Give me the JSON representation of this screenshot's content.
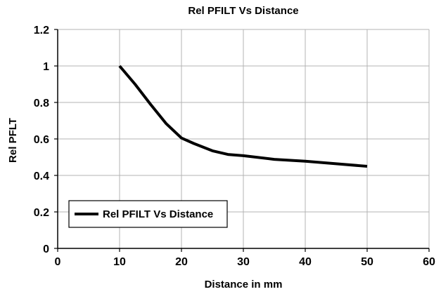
{
  "chart_data": {
    "type": "line",
    "title": "Rel PFILT Vs Distance",
    "xlabel": "Distance in mm",
    "ylabel": "Rel PFLT",
    "xlim": [
      0,
      60
    ],
    "ylim": [
      0,
      1.2
    ],
    "x_ticks": [
      "0",
      "10",
      "20",
      "30",
      "40",
      "50",
      "60"
    ],
    "y_ticks": [
      "0",
      "0.2",
      "0.4",
      "0.6",
      "0.8",
      "1",
      "1.2"
    ],
    "grid": true,
    "legend_position": "bottom-left",
    "series": [
      {
        "name": "Rel PFILT Vs Distance",
        "color": "#000000",
        "x": [
          10,
          12.5,
          15,
          17.5,
          20,
          22,
          25,
          27.5,
          30,
          35,
          40,
          45,
          50
        ],
        "y": [
          1.0,
          0.9,
          0.79,
          0.685,
          0.605,
          0.575,
          0.535,
          0.515,
          0.508,
          0.488,
          0.478,
          0.464,
          0.45
        ]
      }
    ]
  }
}
